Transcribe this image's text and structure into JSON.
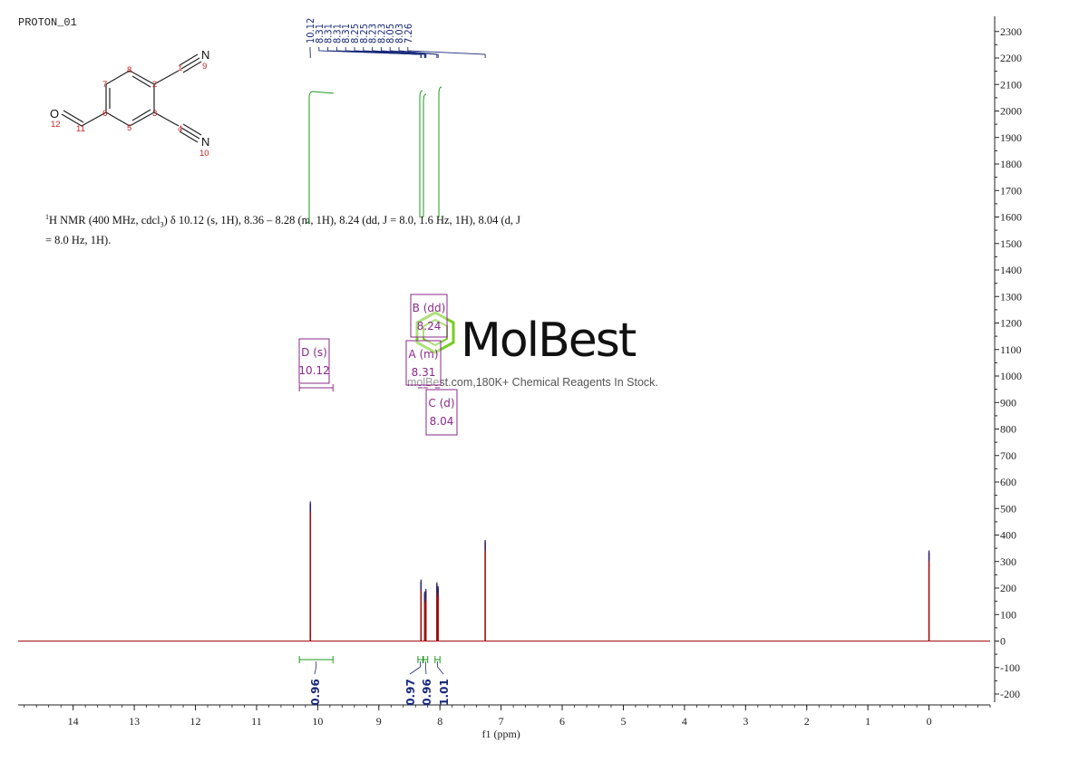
{
  "title": "PROTON_01",
  "nmr_description": {
    "line1_sup": "1",
    "line1": "H NMR (400 MHz, cdcl",
    "sub": "3",
    "line1_rest": ") δ 10.12 (s, 1H), 8.36 – 8.28 (m, 1H), 8.24 (dd, J = 8.0, 1.6 Hz, 1H), 8.04 (d, J",
    "line2": "= 8.0 Hz, 1H)."
  },
  "watermark": {
    "name": "MolBest",
    "tagline": "molBest.com,180K+ Chemical Reagents In Stock.",
    "color": "#77cc22"
  },
  "structure": {
    "atoms": {
      "O": "O",
      "N9": "N",
      "N10": "N"
    },
    "numbers": [
      "1",
      "2",
      "3",
      "4",
      "5",
      "6",
      "7",
      "8",
      "9",
      "10",
      "11",
      "12"
    ]
  },
  "peak_labels": [
    "10.12",
    "8.31",
    "8.31",
    "8.31",
    "8.31",
    "8.25",
    "8.25",
    "8.23",
    "8.23",
    "8.05",
    "8.03",
    "7.26"
  ],
  "multiplets": [
    {
      "letter": "D (s)",
      "shift": "10.12",
      "range": [
        9.75,
        10.3
      ]
    },
    {
      "letter": "B (dd)",
      "shift": "8.24"
    },
    {
      "letter": "A (m)",
      "shift": "8.31"
    },
    {
      "letter": "C (d)",
      "shift": "8.04"
    }
  ],
  "chart_data": {
    "type": "line",
    "xlabel": "f1 (ppm)",
    "x_ticks": [
      "14",
      "13",
      "12",
      "11",
      "10",
      "9",
      "8",
      "7",
      "6",
      "5",
      "4",
      "3",
      "2",
      "1",
      "0"
    ],
    "y_ticks": [
      "2300",
      "2200",
      "2100",
      "2000",
      "1900",
      "1800",
      "1700",
      "1600",
      "1500",
      "1400",
      "1300",
      "1200",
      "1100",
      "1000",
      "900",
      "800",
      "700",
      "600",
      "500",
      "400",
      "300",
      "200",
      "100",
      "0",
      "-100",
      "-200"
    ],
    "xlim": [
      14.9,
      -1.0
    ],
    "ylim": [
      -230,
      2330
    ],
    "peaks": [
      {
        "ppm": 10.12,
        "intensity": 520
      },
      {
        "ppm": 8.31,
        "intensity": 225
      },
      {
        "ppm": 8.25,
        "intensity": 180
      },
      {
        "ppm": 8.23,
        "intensity": 190
      },
      {
        "ppm": 8.05,
        "intensity": 215
      },
      {
        "ppm": 8.03,
        "intensity": 200
      },
      {
        "ppm": 7.26,
        "intensity": 375
      },
      {
        "ppm": 0.0,
        "intensity": 335
      }
    ],
    "integrals": [
      {
        "label": "0.96",
        "from": 10.3,
        "to": 9.75
      },
      {
        "label": "0.97",
        "from": 8.36,
        "to": 8.28
      },
      {
        "label": "0.96",
        "from": 8.27,
        "to": 8.2
      },
      {
        "label": "1.01",
        "from": 8.08,
        "to": 8.0
      }
    ],
    "colors": {
      "spectrum": "#a01010",
      "integral": "#229922",
      "label": "#1a2a7a",
      "multiplet": "#8a2a8a"
    }
  }
}
